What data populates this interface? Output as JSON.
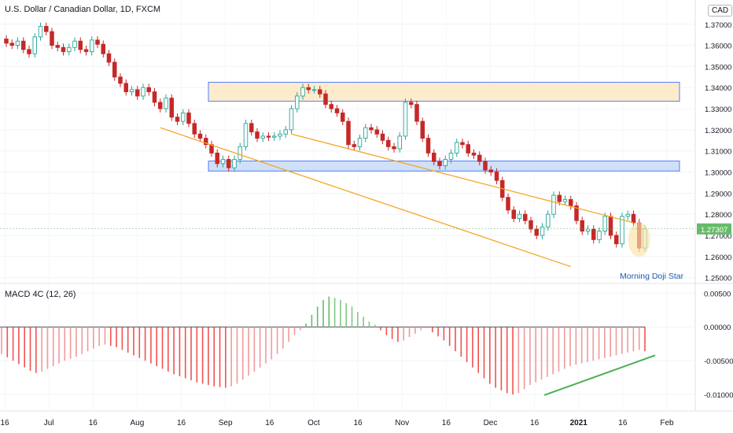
{
  "header": {
    "title": "U.S. Dollar / Canadian Dollar, 1D, FXCM",
    "currency": "CAD"
  },
  "macd_panel": {
    "label": "MACD 4C (12, 26)"
  },
  "colors": {
    "up": "#26a69a",
    "up_fill": "#ffffff",
    "down": "#c62828",
    "macd_pos_up": "#66bb6a",
    "macd_pos_down": "#81c784",
    "macd_neg_down": "#ef5350",
    "macd_neg_up": "#ef9a9a",
    "channel": "#f5a623",
    "resistance_fill": "#fdeccc",
    "support_fill": "#cfe0f7",
    "zone_border": "#2962ff",
    "trend_line": "#4caf50",
    "price_tag": "#66bb6a"
  },
  "chart_data": {
    "type": "candlestick",
    "title": "U.S. Dollar / Canadian Dollar, 1D, FXCM",
    "y_ticks": [
      "1.37000",
      "1.36000",
      "1.35000",
      "1.34000",
      "1.33000",
      "1.32000",
      "1.31000",
      "1.30000",
      "1.29000",
      "1.28000",
      "1.27000",
      "1.26000",
      "1.25000"
    ],
    "ylim": [
      1.248,
      1.3755
    ],
    "x_ticks": [
      "16",
      "Jul",
      "16",
      "Aug",
      "16",
      "Sep",
      "16",
      "Oct",
      "16",
      "Nov",
      "16",
      "Dec",
      "16",
      "2021",
      "16",
      "Feb"
    ],
    "last_price": "1.27307",
    "annotation": "Morning Doji Star",
    "resistance_zone": [
      1.3335,
      1.3425
    ],
    "support_zone": [
      1.3005,
      1.3052
    ],
    "channel_upper": [
      [
        1.317,
        1.276
      ]
    ],
    "channel_upper_points": [
      [
        50,
        1.318
      ],
      [
        110,
        1.276
      ]
    ],
    "channel_lower_points": [
      [
        27,
        1.321
      ],
      [
        99,
        1.2552
      ]
    ],
    "closes": [
      1.361,
      1.36,
      1.362,
      1.358,
      1.356,
      1.364,
      1.369,
      1.3665,
      1.36,
      1.359,
      1.357,
      1.359,
      1.362,
      1.358,
      1.357,
      1.3625,
      1.3605,
      1.356,
      1.352,
      1.345,
      1.342,
      1.338,
      1.339,
      1.336,
      1.34,
      1.338,
      1.333,
      1.33,
      1.335,
      1.326,
      1.324,
      1.328,
      1.323,
      1.318,
      1.316,
      1.313,
      1.309,
      1.304,
      1.306,
      1.302,
      1.306,
      1.312,
      1.323,
      1.319,
      1.316,
      1.317,
      1.3165,
      1.317,
      1.318,
      1.32,
      1.33,
      1.336,
      1.34,
      1.339,
      1.339,
      1.337,
      1.332,
      1.33,
      1.328,
      1.324,
      1.313,
      1.312,
      1.316,
      1.321,
      1.32,
      1.318,
      1.315,
      1.312,
      1.311,
      1.317,
      1.333,
      1.332,
      1.324,
      1.316,
      1.309,
      1.305,
      1.303,
      1.306,
      1.309,
      1.314,
      1.313,
      1.309,
      1.308,
      1.305,
      1.301,
      1.3,
      1.296,
      1.288,
      1.282,
      1.278,
      1.28,
      1.277,
      1.273,
      1.27,
      1.274,
      1.28,
      1.289,
      1.286,
      1.287,
      1.284,
      1.277,
      1.272,
      1.273,
      1.268,
      1.272,
      1.279,
      1.27,
      1.266,
      1.279,
      1.28,
      1.276,
      1.264,
      1.2731
    ],
    "macd_hist": [
      -0.004,
      -0.0045,
      -0.005,
      -0.0055,
      -0.006,
      -0.0065,
      -0.0068,
      -0.0066,
      -0.0062,
      -0.0058,
      -0.0054,
      -0.005,
      -0.0047,
      -0.0044,
      -0.004,
      -0.0036,
      -0.0032,
      -0.0028,
      -0.0026,
      -0.0028,
      -0.003,
      -0.0034,
      -0.0038,
      -0.0042,
      -0.0046,
      -0.005,
      -0.0054,
      -0.0058,
      -0.0062,
      -0.0066,
      -0.007,
      -0.0073,
      -0.0076,
      -0.0079,
      -0.0082,
      -0.0084,
      -0.0086,
      -0.0088,
      -0.0089,
      -0.009,
      -0.0088,
      -0.0084,
      -0.0078,
      -0.0072,
      -0.0066,
      -0.006,
      -0.0054,
      -0.0048,
      -0.004,
      -0.0032,
      -0.0022,
      -0.0012,
      -0.0005,
      0.0005,
      0.0018,
      0.003,
      0.004,
      0.0045,
      0.0043,
      0.004,
      0.0035,
      0.003,
      0.0022,
      0.0015,
      0.0008,
      0.0003,
      -0.0005,
      -0.0012,
      -0.0018,
      -0.0022,
      -0.002,
      -0.0015,
      -0.001,
      -0.0005,
      -0.0002,
      -0.0008,
      -0.0014,
      -0.002,
      -0.0028,
      -0.0036,
      -0.0044,
      -0.0052,
      -0.006,
      -0.0068,
      -0.0076,
      -0.0084,
      -0.009,
      -0.0094,
      -0.0098,
      -0.01,
      -0.0098,
      -0.0092,
      -0.0086,
      -0.0082,
      -0.0078,
      -0.0074,
      -0.007,
      -0.0066,
      -0.0062,
      -0.0058,
      -0.0056,
      -0.0054,
      -0.0052,
      -0.005,
      -0.0048,
      -0.0046,
      -0.0044,
      -0.0042,
      -0.004,
      -0.0038,
      -0.0036,
      -0.0034,
      -0.0036
    ],
    "macd_ticks": [
      "0.00500",
      "0.00000",
      "-0.00500",
      "-0.01000"
    ],
    "macd_ylim": [
      -0.0122,
      0.0062
    ]
  }
}
